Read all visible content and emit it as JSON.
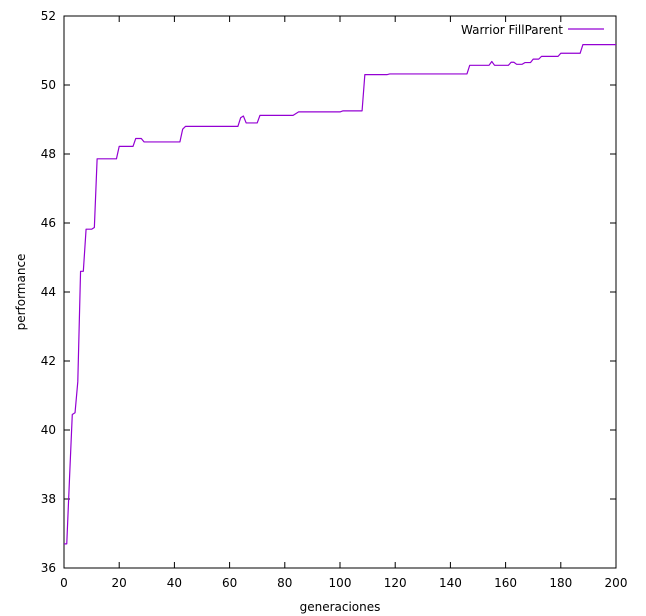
{
  "chart_data": {
    "type": "line",
    "title": "",
    "xlabel": "generaciones",
    "ylabel": "performance",
    "xlim": [
      0,
      200
    ],
    "ylim": [
      36,
      52
    ],
    "xticks": [
      0,
      20,
      40,
      60,
      80,
      100,
      120,
      140,
      160,
      180,
      200
    ],
    "yticks": [
      36,
      38,
      40,
      42,
      44,
      46,
      48,
      50,
      52
    ],
    "grid": false,
    "legend_position": "top-right",
    "series": [
      {
        "name": "Warrior FillParent",
        "color": "#9400d3",
        "points": [
          [
            0,
            36.7
          ],
          [
            1,
            36.7
          ],
          [
            2,
            38.6
          ],
          [
            3,
            40.45
          ],
          [
            4,
            40.5
          ],
          [
            5,
            41.4
          ],
          [
            6,
            44.6
          ],
          [
            7,
            44.6
          ],
          [
            8,
            45.82
          ],
          [
            10,
            45.82
          ],
          [
            11,
            45.87
          ],
          [
            12,
            47.86
          ],
          [
            19,
            47.86
          ],
          [
            20,
            48.22
          ],
          [
            24,
            48.22
          ],
          [
            25,
            48.22
          ],
          [
            26,
            48.45
          ],
          [
            28,
            48.45
          ],
          [
            29,
            48.35
          ],
          [
            42,
            48.35
          ],
          [
            43,
            48.72
          ],
          [
            44,
            48.8
          ],
          [
            63,
            48.8
          ],
          [
            64,
            49.05
          ],
          [
            65,
            49.1
          ],
          [
            66,
            48.9
          ],
          [
            70,
            48.9
          ],
          [
            71,
            49.12
          ],
          [
            83,
            49.12
          ],
          [
            85,
            49.22
          ],
          [
            100,
            49.22
          ],
          [
            101,
            49.25
          ],
          [
            108,
            49.25
          ],
          [
            109,
            50.3
          ],
          [
            117,
            50.3
          ],
          [
            118,
            50.32
          ],
          [
            146,
            50.32
          ],
          [
            147,
            50.57
          ],
          [
            154,
            50.57
          ],
          [
            155,
            50.68
          ],
          [
            156,
            50.57
          ],
          [
            161,
            50.57
          ],
          [
            162,
            50.66
          ],
          [
            163,
            50.66
          ],
          [
            164,
            50.6
          ],
          [
            166,
            50.6
          ],
          [
            167,
            50.65
          ],
          [
            169,
            50.65
          ],
          [
            170,
            50.75
          ],
          [
            172,
            50.75
          ],
          [
            173,
            50.83
          ],
          [
            179,
            50.83
          ],
          [
            180,
            50.92
          ],
          [
            187,
            50.92
          ],
          [
            188,
            51.17
          ],
          [
            200,
            51.17
          ]
        ]
      }
    ]
  }
}
